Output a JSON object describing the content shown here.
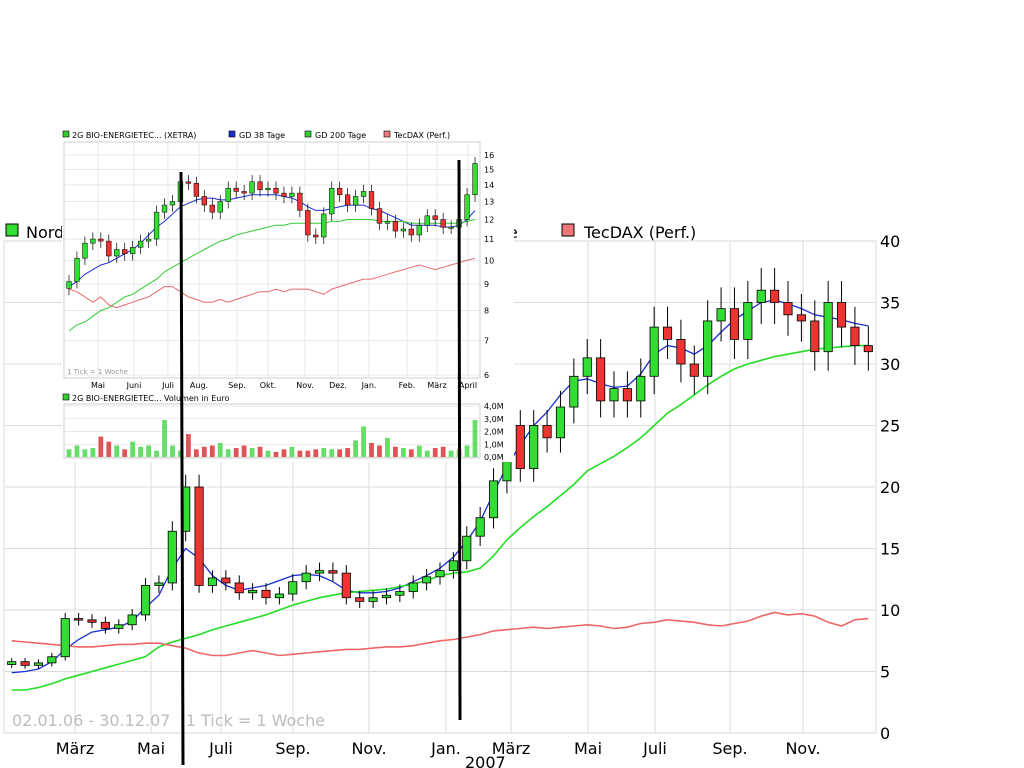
{
  "main": {
    "legend": [
      {
        "label": "Nord",
        "color": "#33cc33"
      },
      {
        "label": "e",
        "color": "#000000"
      },
      {
        "label": "TecDAX (Perf.)",
        "color": "#e87a7a"
      }
    ],
    "footer_text": "02.01.06 - 30.12.07   1 Tick = 1 Woche",
    "x_labels": [
      "März",
      "Mai",
      "Juli",
      "Sep.",
      "Nov.",
      "Jan.",
      "März",
      "Mai",
      "Juli",
      "Sep.",
      "Nov."
    ],
    "year_label": "2007",
    "y_labels": [
      "0",
      "5",
      "10",
      "15",
      "20",
      "25",
      "30",
      "35",
      "40"
    ]
  },
  "inset": {
    "legend": [
      {
        "label": "2G BIO-ENERGIETEC... (XETRA)",
        "color": "#33cc33"
      },
      {
        "label": "GD 38 Tage",
        "color": "#1a2fd0"
      },
      {
        "label": "GD 200 Tage",
        "color": "#33cc33"
      },
      {
        "label": "TecDAX (Perf.)",
        "color": "#e87a7a"
      }
    ],
    "x_labels": [
      "Mai",
      "Juni",
      "Juli",
      "Aug.",
      "Sep.",
      "Okt.",
      "Nov.",
      "Dez.",
      "Jan.",
      "Feb.",
      "März",
      "April"
    ],
    "y_labels": [
      "6",
      "7",
      "8",
      "9",
      "10",
      "11",
      "12",
      "13",
      "14",
      "15",
      "16"
    ],
    "tick_text": "1 Tick = 1 Woche",
    "volume_legend": "2G BIO-ENERGIETEC... Volumen in Euro",
    "volume_labels": [
      "4,0M",
      "3,0M",
      "2,0M",
      "1,0M",
      "0,0M"
    ]
  },
  "chart_data": [
    {
      "type": "candlestick",
      "title": "",
      "xlim": [
        "02.01.06",
        "30.12.07"
      ],
      "ylim": [
        0,
        40
      ],
      "grid": true,
      "series": [
        {
          "name": "Nord",
          "values": [
            5.8,
            5.5,
            5.7,
            6.2,
            9.3,
            9.2,
            9.0,
            8.5,
            8.8,
            9.6,
            12.0,
            12.2,
            16.4,
            20.0,
            12.0,
            12.6,
            12.2,
            11.4,
            11.6,
            11.0,
            11.3,
            12.3,
            13.0,
            13.2,
            13.0,
            11.0,
            10.7,
            11.0,
            11.2,
            11.5,
            12.2,
            12.7,
            13.2,
            14.0,
            16.0,
            17.5,
            20.5,
            25.0,
            21.5,
            25.0,
            24.0,
            26.5,
            29.0,
            30.5,
            27.0,
            28.0,
            27.0,
            29.0,
            33.0,
            32.0,
            30.0,
            29.0,
            33.5,
            34.5,
            32.0,
            35.0,
            36.0,
            35.0,
            34.0,
            33.5,
            31.0,
            35.0,
            33.0,
            31.5,
            31.0
          ]
        },
        {
          "name": "GD 38 Tage",
          "values": [
            4.9,
            5.0,
            5.2,
            5.8,
            6.8,
            7.6,
            8.2,
            8.4,
            8.6,
            9.1,
            10.2,
            11.2,
            13.4,
            15.0,
            14.2,
            12.8,
            12.0,
            11.6,
            11.8,
            12.0,
            12.4,
            12.8,
            12.9,
            12.8,
            12.3,
            11.6,
            11.4,
            11.4,
            11.5,
            11.8,
            12.3,
            12.8,
            13.4,
            14.3,
            15.6,
            17.2,
            19.5,
            21.7,
            23.4,
            25.0,
            26.1,
            27.5,
            28.6,
            28.8,
            28.4,
            28.1,
            28.2,
            29.2,
            30.8,
            31.5,
            31.3,
            30.8,
            31.5,
            32.6,
            33.6,
            34.3,
            35.0,
            35.2,
            34.9,
            34.5,
            34.0,
            33.8,
            33.6,
            33.3,
            33.1
          ]
        },
        {
          "name": "GD 200 Tage",
          "values": [
            3.5,
            3.5,
            3.7,
            4.0,
            4.4,
            4.7,
            5.0,
            5.3,
            5.6,
            5.9,
            6.2,
            7.0,
            7.4,
            7.7,
            8.0,
            8.4,
            8.7,
            9.0,
            9.3,
            9.6,
            10.0,
            10.4,
            10.7,
            11.0,
            11.2,
            11.4,
            11.5,
            11.6,
            11.7,
            11.9,
            12.1,
            12.4,
            12.8,
            13.0,
            13.1,
            13.4,
            14.4,
            15.7,
            16.7,
            17.6,
            18.4,
            19.3,
            20.2,
            21.3,
            21.9,
            22.5,
            23.2,
            24.0,
            25.0,
            26.0,
            26.7,
            27.5,
            28.3,
            29.0,
            29.6,
            30.0,
            30.3,
            30.6,
            30.8,
            31.0,
            31.2,
            31.3,
            31.4,
            31.5,
            31.5
          ]
        },
        {
          "name": "TecDAX (Perf.)",
          "values": [
            7.5,
            7.4,
            7.3,
            7.2,
            7.1,
            7.0,
            7.0,
            7.1,
            7.2,
            7.2,
            7.3,
            7.3,
            7.1,
            6.9,
            6.5,
            6.3,
            6.3,
            6.5,
            6.7,
            6.5,
            6.3,
            6.4,
            6.5,
            6.6,
            6.7,
            6.8,
            6.8,
            6.9,
            7.0,
            7.0,
            7.1,
            7.3,
            7.5,
            7.6,
            7.8,
            8.0,
            8.3,
            8.4,
            8.5,
            8.6,
            8.5,
            8.6,
            8.7,
            8.8,
            8.7,
            8.5,
            8.6,
            8.9,
            9.0,
            9.2,
            9.1,
            9.0,
            8.8,
            8.7,
            8.9,
            9.1,
            9.5,
            9.8,
            9.6,
            9.7,
            9.5,
            9.0,
            8.7,
            9.2,
            9.3
          ]
        }
      ]
    },
    {
      "type": "candlestick",
      "title": "",
      "ylim": [
        6,
        16
      ],
      "ylog": true,
      "grid": true,
      "series": [
        {
          "name": "2G BIO-ENERGIETEC... (XETRA)",
          "values": [
            9.1,
            10.1,
            10.8,
            11.0,
            10.9,
            10.2,
            10.5,
            10.3,
            10.6,
            10.9,
            11.0,
            12.4,
            12.8,
            13.0,
            14.2,
            14.1,
            13.3,
            12.8,
            12.4,
            13.0,
            13.8,
            13.6,
            13.5,
            14.2,
            13.7,
            13.8,
            13.5,
            13.3,
            13.5,
            12.5,
            11.2,
            11.1,
            12.3,
            13.8,
            13.4,
            12.8,
            13.3,
            13.6,
            12.6,
            11.8,
            11.9,
            11.4,
            11.5,
            11.2,
            11.7,
            12.2,
            12.0,
            11.6,
            11.6,
            12.0,
            13.4,
            15.4
          ]
        },
        {
          "name": "GD 38 Tage",
          "values": [
            8.9,
            9.1,
            9.4,
            9.6,
            9.8,
            9.9,
            10.1,
            10.3,
            10.5,
            10.8,
            11.2,
            11.6,
            11.9,
            12.3,
            12.7,
            12.9,
            13.1,
            13.2,
            13.2,
            13.1,
            13.1,
            13.2,
            13.3,
            13.4,
            13.4,
            13.4,
            13.4,
            13.3,
            13.2,
            13.0,
            12.7,
            12.5,
            12.5,
            12.6,
            12.7,
            12.8,
            12.8,
            12.8,
            12.6,
            12.5,
            12.3,
            12.1,
            11.9,
            11.7,
            11.7,
            11.7,
            11.7,
            11.6,
            11.6,
            11.7,
            12.0,
            12.5
          ]
        },
        {
          "name": "GD 200 Tage",
          "values": [
            7.3,
            7.5,
            7.6,
            7.8,
            8.0,
            8.1,
            8.3,
            8.5,
            8.6,
            8.8,
            9.0,
            9.2,
            9.5,
            9.7,
            9.9,
            10.1,
            10.3,
            10.5,
            10.7,
            10.9,
            11.0,
            11.2,
            11.3,
            11.4,
            11.5,
            11.6,
            11.7,
            11.7,
            11.8,
            11.8,
            11.8,
            11.8,
            11.8,
            11.9,
            11.9,
            12.0,
            12.0,
            12.0,
            12.0,
            11.9,
            11.9,
            11.9,
            11.9,
            11.8,
            11.8,
            11.8,
            11.8,
            11.8,
            11.8,
            11.8,
            11.9,
            12.0
          ]
        },
        {
          "name": "TecDAX (Perf.)",
          "values": [
            8.8,
            8.7,
            8.5,
            8.3,
            8.5,
            8.2,
            8.1,
            8.2,
            8.3,
            8.4,
            8.5,
            8.7,
            8.9,
            8.9,
            8.7,
            8.5,
            8.4,
            8.3,
            8.3,
            8.4,
            8.3,
            8.4,
            8.5,
            8.6,
            8.7,
            8.7,
            8.8,
            8.7,
            8.8,
            8.8,
            8.8,
            8.7,
            8.6,
            8.8,
            8.9,
            9.0,
            9.1,
            9.2,
            9.2,
            9.3,
            9.4,
            9.5,
            9.6,
            9.7,
            9.8,
            9.7,
            9.6,
            9.7,
            9.8,
            9.9,
            10.0,
            10.1
          ]
        }
      ]
    },
    {
      "type": "bar",
      "series": [
        {
          "name": "2G BIO-ENERGIETEC... Volumen in Euro",
          "values": [
            0.6,
            0.9,
            0.6,
            0.7,
            1.6,
            1.2,
            0.9,
            0.6,
            1.2,
            0.8,
            0.9,
            0.5,
            2.9,
            0.9,
            0.5,
            1.8,
            0.6,
            0.8,
            0.9,
            1.1,
            0.6,
            0.7,
            0.9,
            0.7,
            0.8,
            0.5,
            0.4,
            0.6,
            0.8,
            0.5,
            0.5,
            0.6,
            0.7,
            0.6,
            0.6,
            0.7,
            1.3,
            2.4,
            1.1,
            0.9,
            1.5,
            0.8,
            0.7,
            0.6,
            0.9,
            0.5,
            0.7,
            0.8,
            0.5,
            0.6,
            0.9,
            2.9
          ]
        }
      ]
    }
  ]
}
